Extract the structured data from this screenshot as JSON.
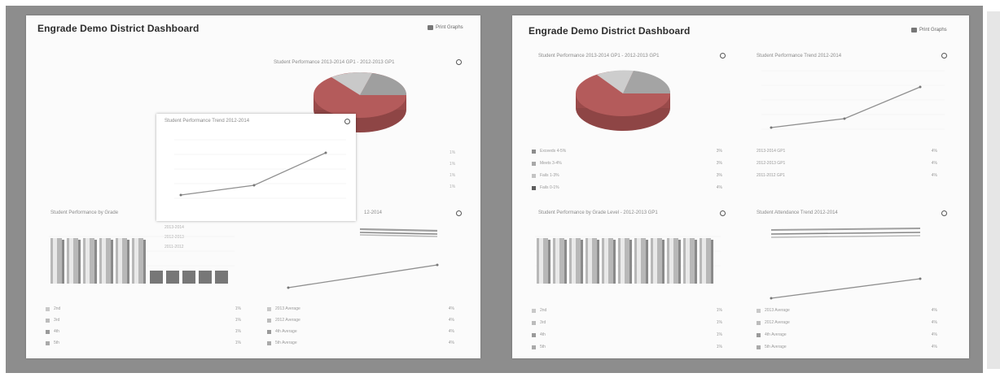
{
  "screens": [
    {
      "title": "Engrade Demo District Dashboard",
      "print_label": "Print Graphs",
      "charts": {
        "pie_title": "Student Performance 2013-2014 GP1 - 2012-2013 GP1",
        "trend_title": "Student Performance Trend 2012-2014",
        "grade_title": "Student Performance by Grade",
        "attendance_title": "Student Attendance Trend 2012-2014"
      },
      "grade_legend": [
        "2nd",
        "3rd",
        "4th",
        "5th"
      ],
      "attendance_legend": [
        "2013 Average",
        "2012 Average",
        "4th Average",
        "5th Average"
      ]
    },
    {
      "title": "Engrade Demo District Dashboard",
      "print_label": "Print Graphs",
      "charts": {
        "pie_title": "Student Performance 2013-2014 GP1 - 2012-2013 GP1",
        "trend_title": "Student Performance Trend 2012-2014",
        "grade_title": "Student Performance by Grade Level - 2012-2013 GP1",
        "attendance_title": "Student Attendance Trend 2012-2014"
      },
      "pie_legend": [
        {
          "label": "Exceeds 4-5%",
          "color": "#8c8c8c"
        },
        {
          "label": "Meets 3-4%",
          "color": "#a8a8a8"
        },
        {
          "label": "Fails 1-3%",
          "color": "#c4c4c4"
        },
        {
          "label": "Fails 0-1%",
          "color": "#5e5e5e"
        }
      ],
      "trend_legend": [
        "2013-2014 GP1",
        "2012-2013 GP1",
        "2011-2012 GP1"
      ],
      "grade_legend": [
        "2nd",
        "3rd",
        "4th",
        "5th"
      ],
      "attendance_legend": [
        "2013 Average",
        "2012 Average",
        "4th Average",
        "5th Average"
      ]
    }
  ],
  "colors": {
    "frame": "#8d8d8d",
    "panel": "#fbfbfb",
    "pie_red": "#b45b5b",
    "pie_gray": "#b5b5b5",
    "line": "#8f8f8f"
  },
  "icons": [
    "print-icon",
    "gear-icon"
  ]
}
